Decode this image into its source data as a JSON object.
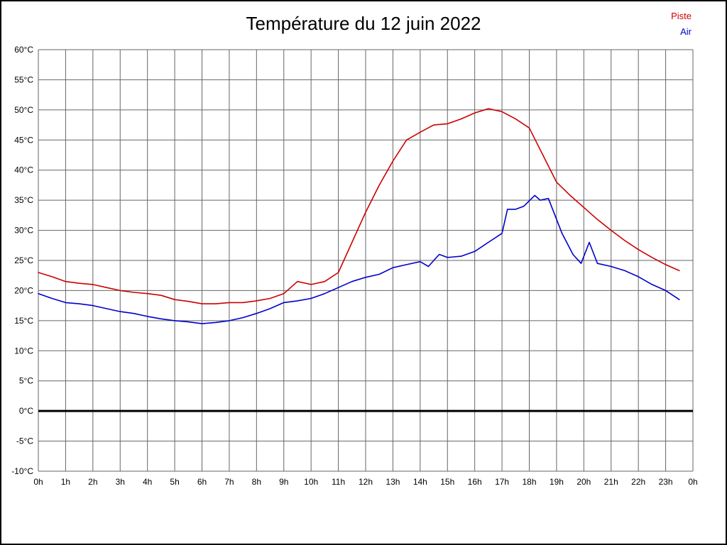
{
  "title": "Température du 12 juin 2022",
  "legend": [
    {
      "label": "Piste",
      "color": "#cc0000"
    },
    {
      "label": "Air",
      "color": "#0000cc"
    }
  ],
  "chart_data": {
    "type": "line",
    "title": "Température du 12 juin 2022",
    "xlabel": "",
    "ylabel": "",
    "xlim": [
      0,
      24
    ],
    "ylim": [
      -10,
      60
    ],
    "grid": true,
    "zero_line": true,
    "legend_position": "top-right",
    "x_ticks": [
      "0h",
      "1h",
      "2h",
      "3h",
      "4h",
      "5h",
      "6h",
      "7h",
      "8h",
      "9h",
      "10h",
      "11h",
      "12h",
      "13h",
      "14h",
      "15h",
      "16h",
      "17h",
      "18h",
      "19h",
      "20h",
      "21h",
      "22h",
      "23h",
      "0h"
    ],
    "y_ticks": [
      "60°C",
      "55°C",
      "50°C",
      "45°C",
      "40°C",
      "35°C",
      "30°C",
      "25°C",
      "20°C",
      "15°C",
      "10°C",
      "5°C",
      "0°C",
      "-5°C",
      "-10°C"
    ],
    "series": [
      {
        "name": "Piste",
        "color": "#cc0000",
        "x": [
          0,
          0.5,
          1,
          1.5,
          2,
          2.5,
          3,
          3.5,
          4,
          4.5,
          5,
          5.5,
          6,
          6.5,
          7,
          7.5,
          8,
          8.5,
          9,
          9.5,
          10,
          10.5,
          11,
          11.5,
          12,
          12.5,
          13,
          13.5,
          14,
          14.5,
          15,
          15.5,
          16,
          16.5,
          17,
          17.5,
          18,
          18.5,
          19,
          19.5,
          20,
          20.5,
          21,
          21.5,
          22,
          22.5,
          23,
          23.5
        ],
        "values": [
          23,
          22.3,
          21.5,
          21.2,
          21,
          20.5,
          20,
          19.7,
          19.5,
          19.2,
          18.5,
          18.2,
          17.8,
          17.8,
          18,
          18,
          18.3,
          18.7,
          19.5,
          21.5,
          21,
          21.5,
          23,
          28,
          33,
          37.5,
          41.5,
          45,
          46.3,
          47.5,
          47.7,
          48.5,
          49.5,
          50.2,
          49.7,
          48.5,
          47,
          42.5,
          38,
          35.8,
          33.8,
          31.8,
          30,
          28.3,
          26.8,
          25.5,
          24.3,
          23.3
        ]
      },
      {
        "name": "Air",
        "color": "#0000cc",
        "x": [
          0,
          0.5,
          1,
          1.5,
          2,
          2.5,
          3,
          3.5,
          4,
          4.5,
          5,
          5.5,
          6,
          6.5,
          7,
          7.5,
          8,
          8.5,
          9,
          9.5,
          10,
          10.5,
          11,
          11.5,
          12,
          12.5,
          13,
          13.5,
          14,
          14.3,
          14.7,
          15,
          15.5,
          16,
          16.5,
          17,
          17.2,
          17.5,
          17.8,
          18.2,
          18.4,
          18.7,
          19.2,
          19.6,
          19.9,
          20.2,
          20.5,
          21,
          21.5,
          22,
          22.5,
          23,
          23.5
        ],
        "values": [
          19.5,
          18.7,
          18,
          17.8,
          17.5,
          17,
          16.5,
          16.2,
          15.7,
          15.3,
          15,
          14.8,
          14.5,
          14.7,
          15,
          15.5,
          16.2,
          17,
          18,
          18.3,
          18.7,
          19.5,
          20.5,
          21.5,
          22.2,
          22.7,
          23.8,
          24.3,
          24.8,
          24,
          26,
          25.5,
          25.7,
          26.5,
          28,
          29.5,
          33.5,
          33.5,
          34,
          35.8,
          35,
          35.3,
          29.5,
          26,
          24.5,
          28,
          24.5,
          24,
          23.3,
          22.3,
          21,
          20,
          18.5
        ]
      }
    ]
  }
}
